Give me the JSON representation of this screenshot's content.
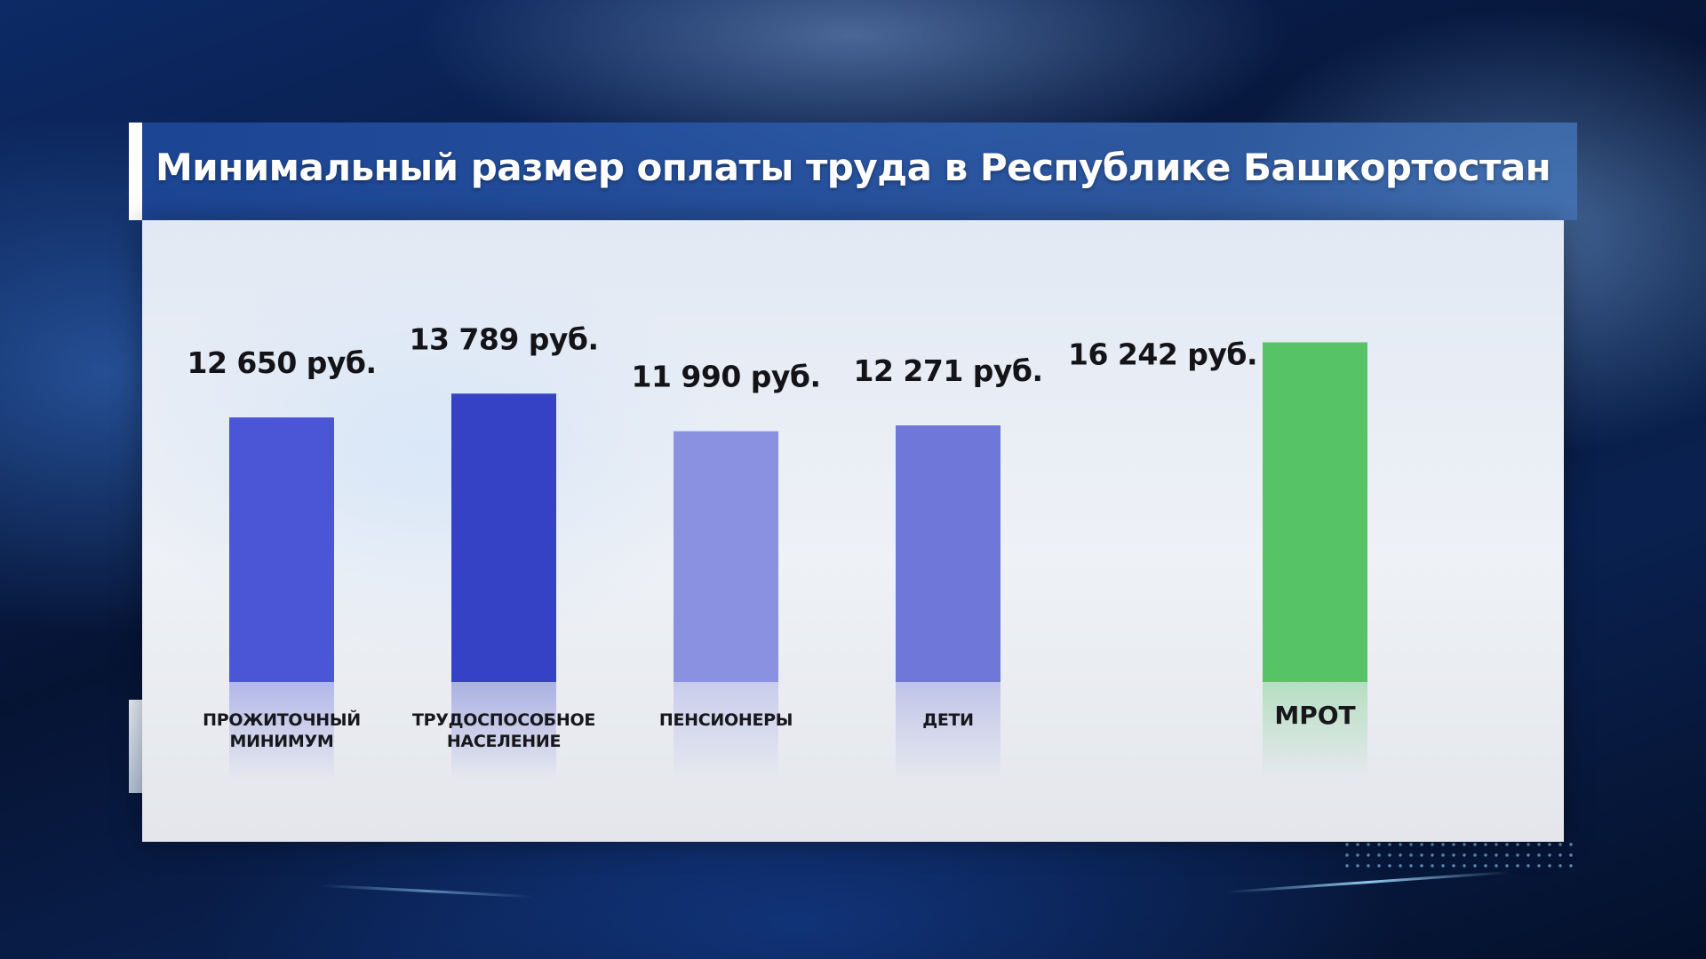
{
  "title": "Минимальный размер оплаты труда в Республике Башкортостан",
  "chart_data": {
    "type": "bar",
    "title": "Минимальный размер оплаты труда в Республике Башкортостан",
    "categories": [
      [
        "ПРОЖИТОЧНЫЙ",
        "МИНИМУМ"
      ],
      [
        "ТРУДОСПОСОБНОЕ",
        "НАСЕЛЕНИЕ"
      ],
      [
        "ПЕНСИОНЕРЫ"
      ],
      [
        "ДЕТИ"
      ],
      [
        "МРОТ"
      ]
    ],
    "values": [
      12650,
      13789,
      11990,
      12271,
      16242
    ],
    "value_labels": [
      "12 650 руб.",
      "13 789 руб.",
      "11 990 руб.",
      "12 271 руб.",
      "16 242 руб."
    ],
    "colors": [
      "#4a56d6",
      "#3642c6",
      "#8a91e0",
      "#6f78d8",
      "#56c466"
    ],
    "xlabel": "",
    "ylabel": "",
    "grid": false,
    "legend": "none"
  }
}
